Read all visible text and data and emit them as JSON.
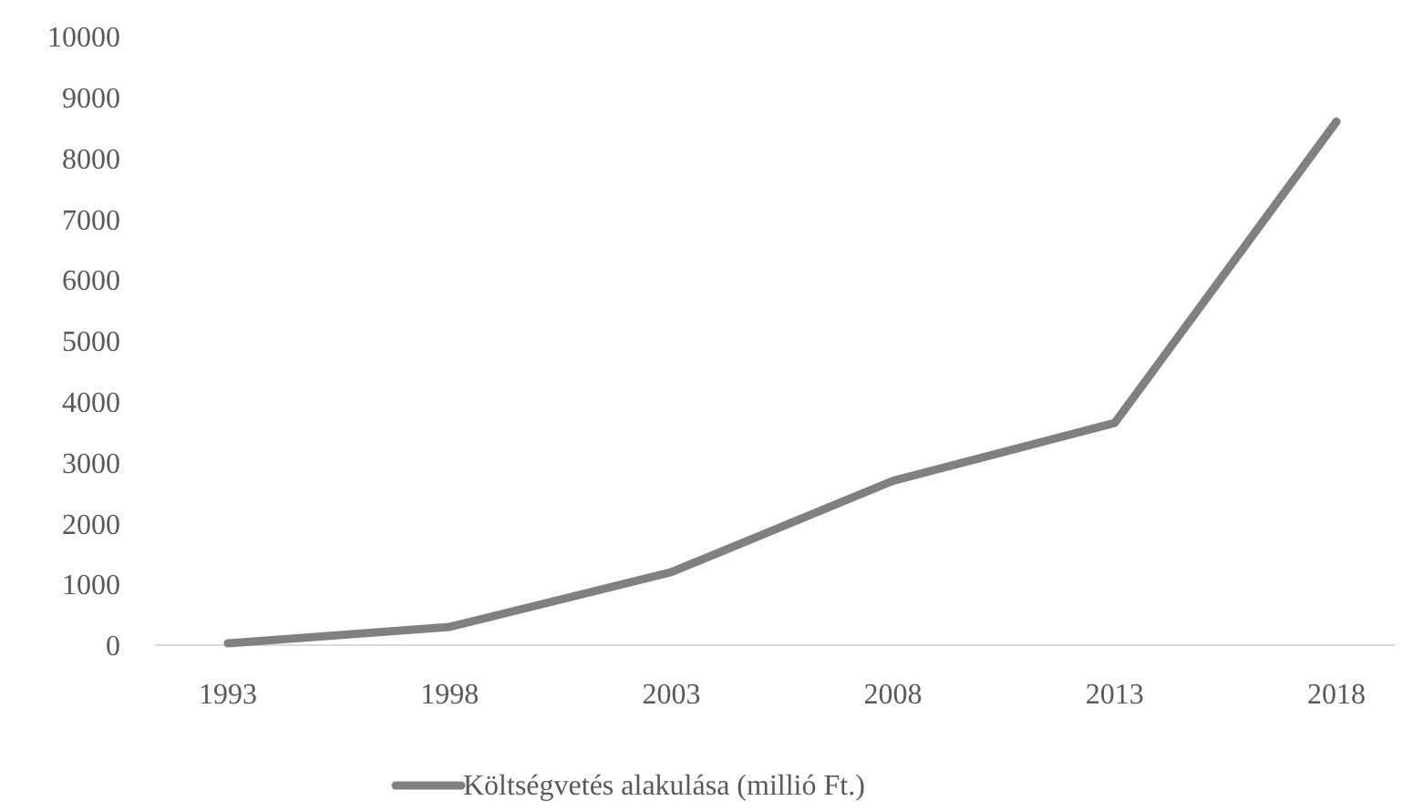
{
  "chart_data": {
    "type": "line",
    "categories": [
      "1993",
      "1998",
      "2003",
      "2008",
      "2013",
      "2018"
    ],
    "series": [
      {
        "name": "Költségvetés alakulása (millió Ft.)",
        "color": "#808080",
        "values": [
          30,
          300,
          1200,
          2700,
          3650,
          8600
        ]
      }
    ],
    "ylim": [
      0,
      10000
    ],
    "yticks": [
      0,
      1000,
      2000,
      3000,
      4000,
      5000,
      6000,
      7000,
      8000,
      9000,
      10000
    ],
    "grid": false,
    "legend": "bottom",
    "marker": "none",
    "line_style": "solid"
  }
}
